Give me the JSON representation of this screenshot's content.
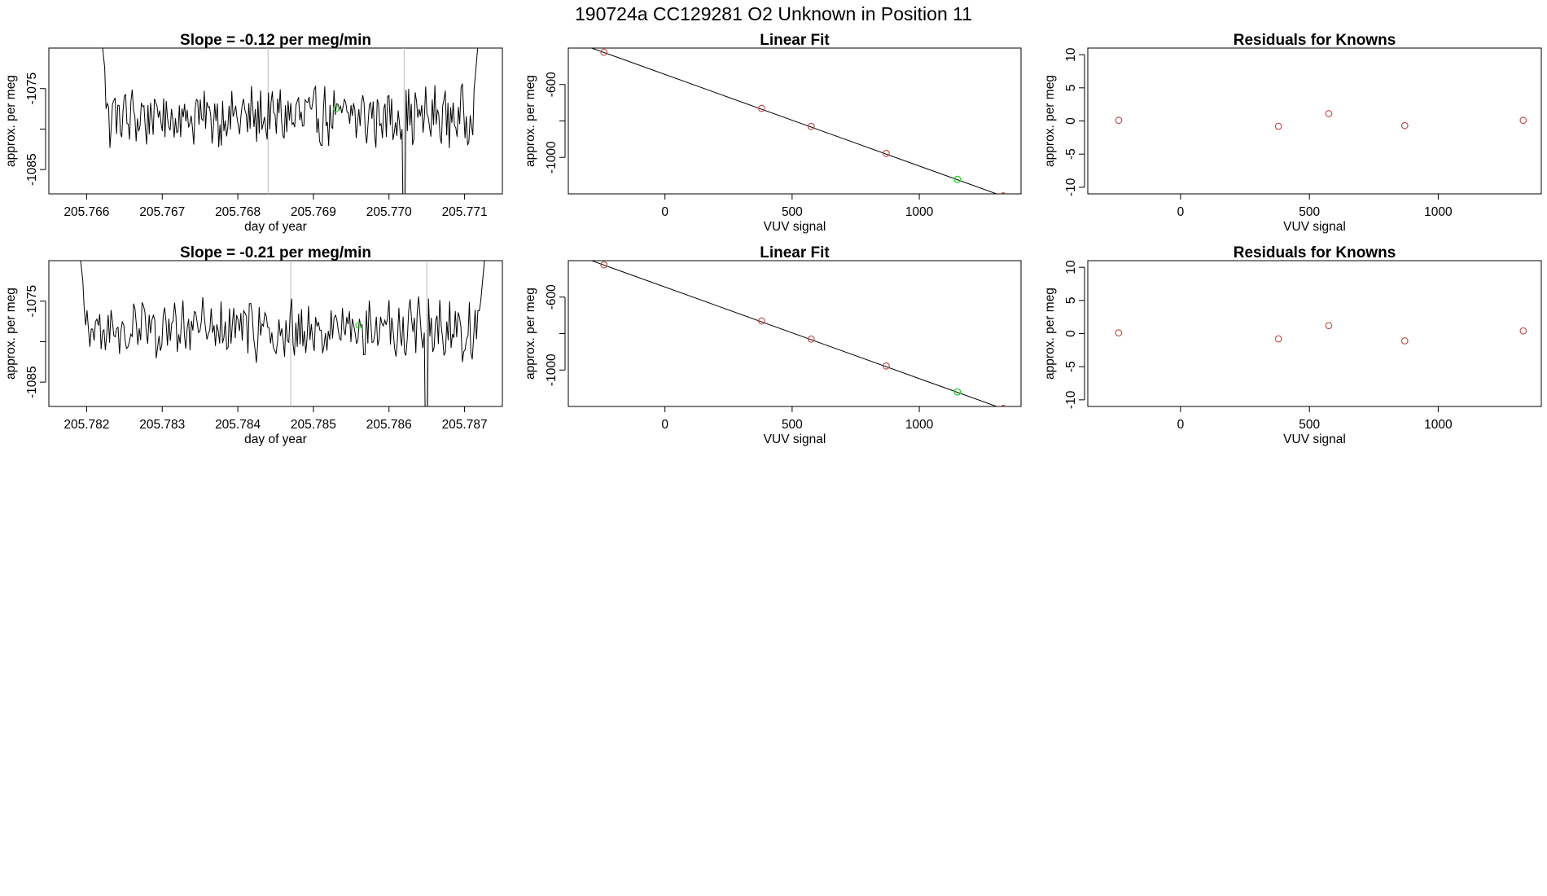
{
  "suptitle": "190724a      CC129281   O2 Unknown in Position  11",
  "colors": {
    "known": "#c0504d",
    "unknown": "#33cc33",
    "line": "#000000",
    "marker": "#bbbbbb"
  },
  "chart_data": [
    {
      "type": "line",
      "title": "Slope =  -0.12  per meg/min",
      "xlabel": "day of year",
      "ylabel": "approx. per meg",
      "xlim": [
        205.7655,
        205.7715
      ],
      "ylim": [
        -1088,
        -1070
      ],
      "xticks": [
        "205.766",
        "205.767",
        "205.768",
        "205.769",
        "205.770",
        "205.771"
      ],
      "yticks": [
        -1085,
        -1080,
        -1075
      ],
      "ytick_labels": [
        "-1085",
        "",
        "-1075"
      ],
      "x_start": 205.7661,
      "x_end": 205.7713,
      "marker_x": [
        205.7684,
        205.7702
      ],
      "unknown_point": {
        "x": 205.7693,
        "y": -1077.5
      },
      "spike_positions": [
        205.7702
      ]
    },
    {
      "type": "scatter",
      "title": "Linear Fit",
      "xlabel": "VUV signal",
      "ylabel": "approx. per meg",
      "xlim": [
        -380,
        1400
      ],
      "ylim": [
        -1200,
        -400
      ],
      "xticks": [
        0,
        500,
        1000
      ],
      "yticks": [
        -1000,
        -800,
        -600
      ],
      "ytick_labels": [
        "-1000",
        "",
        "-600"
      ],
      "fit": {
        "x": [
          -300,
          1330
        ],
        "y": [
          -394,
          -1213
        ]
      },
      "known": {
        "x": [
          -240,
          380,
          575,
          870,
          1330
        ],
        "y": [
          -423,
          -731,
          -830,
          -978,
          -1211
        ]
      },
      "unknown": {
        "x": [
          1150,
          1150
        ],
        "y": [
          -1120,
          -1120
        ]
      }
    },
    {
      "type": "scatter",
      "title": "Residuals for Knowns",
      "xlabel": "VUV signal",
      "ylabel": "approx. per meg",
      "xlim": [
        -360,
        1400
      ],
      "ylim": [
        -11,
        11
      ],
      "xticks": [
        0,
        500,
        1000
      ],
      "yticks": [
        -10,
        -5,
        0,
        5,
        10
      ],
      "ytick_labels": [
        "-10",
        "-5",
        "0",
        "5",
        "10"
      ],
      "known": {
        "x": [
          -240,
          380,
          575,
          870,
          1330
        ],
        "y": [
          0.1,
          -0.8,
          1.1,
          -0.7,
          0.1
        ]
      }
    },
    {
      "type": "line",
      "title": "Slope =  -0.21  per meg/min",
      "xlabel": "day of year",
      "ylabel": "approx. per meg",
      "xlim": [
        205.7815,
        205.7875
      ],
      "ylim": [
        -1088,
        -1070
      ],
      "xticks": [
        "205.782",
        "205.783",
        "205.784",
        "205.785",
        "205.786",
        "205.787"
      ],
      "yticks": [
        -1085,
        -1080,
        -1075
      ],
      "ytick_labels": [
        "-1085",
        "",
        "-1075"
      ],
      "x_start": 205.7818,
      "x_end": 205.7874,
      "marker_x": [
        205.7847,
        205.7865
      ],
      "unknown_point": {
        "x": 205.7856,
        "y": -1078
      },
      "spike_positions": [
        205.7865
      ]
    },
    {
      "type": "scatter",
      "title": "Linear Fit",
      "xlabel": "VUV signal",
      "ylabel": "approx. per meg",
      "xlim": [
        -380,
        1400
      ],
      "ylim": [
        -1200,
        -400
      ],
      "xticks": [
        0,
        500,
        1000
      ],
      "yticks": [
        -1000,
        -800,
        -600
      ],
      "ytick_labels": [
        "-1000",
        "",
        "-600"
      ],
      "fit": {
        "x": [
          -300,
          1330
        ],
        "y": [
          -394,
          -1213
        ]
      },
      "known": {
        "x": [
          -240,
          380,
          575,
          870,
          1330
        ],
        "y": [
          -423,
          -731,
          -830,
          -978,
          -1211
        ]
      },
      "unknown": {
        "x": [
          1150,
          1150
        ],
        "y": [
          -1120,
          -1120
        ]
      }
    },
    {
      "type": "scatter",
      "title": "Residuals for Knowns",
      "xlabel": "VUV signal",
      "ylabel": "approx. per meg",
      "xlim": [
        -360,
        1400
      ],
      "ylim": [
        -11,
        11
      ],
      "xticks": [
        0,
        500,
        1000
      ],
      "yticks": [
        -10,
        -5,
        0,
        5,
        10
      ],
      "ytick_labels": [
        "-10",
        "-5",
        "0",
        "5",
        "10"
      ],
      "known": {
        "x": [
          -240,
          380,
          575,
          870,
          1330
        ],
        "y": [
          0.1,
          -0.8,
          1.2,
          -1.1,
          0.4
        ]
      }
    }
  ]
}
